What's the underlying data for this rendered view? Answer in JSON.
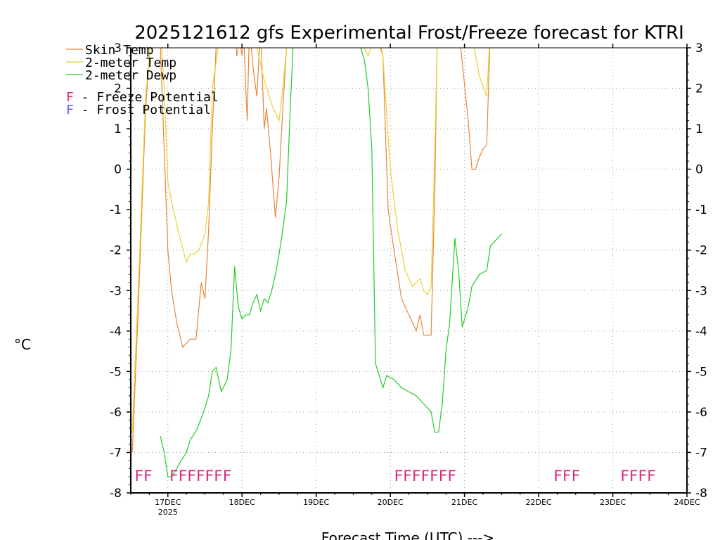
{
  "chart_data": {
    "type": "line",
    "title": "2025121612 gfs Experimental Frost/Freeze forecast for KTRI",
    "xlabel": "Forecast Time (UTC) --->",
    "ylabel": "°C",
    "ylim": [
      -8,
      3
    ],
    "xlim": [
      16.5,
      24
    ],
    "yticks": [
      "-8",
      "-7",
      "-6",
      "-5",
      "-4",
      "-3",
      "-2",
      "-1",
      "0",
      "1",
      "2",
      "3"
    ],
    "xticks": [
      {
        "x": 17,
        "label": "17DEC",
        "sublabel": "2025"
      },
      {
        "x": 18,
        "label": "18DEC"
      },
      {
        "x": 19,
        "label": "19DEC"
      },
      {
        "x": 20,
        "label": "20DEC"
      },
      {
        "x": 21,
        "label": "21DEC"
      },
      {
        "x": 22,
        "label": "22DEC"
      },
      {
        "x": 23,
        "label": "23DEC"
      },
      {
        "x": 24,
        "label": "24DEC"
      }
    ],
    "grid": true,
    "legend": {
      "position": "top-left",
      "series": [
        {
          "name": "Skin Temp",
          "color": "#e8863a"
        },
        {
          "name": "2-meter Temp",
          "color": "#e8d232"
        },
        {
          "name": "2-meter Dewp",
          "color": "#22cc22"
        }
      ],
      "markers": [
        {
          "letter": "F",
          "text": " - Freeze Potential",
          "color": "#d9287f"
        },
        {
          "letter": "F",
          "text": " - Frost Potential",
          "color": "#5a5af0"
        }
      ]
    },
    "series": [
      {
        "name": "Skin Temp",
        "color": "#e8863a",
        "x": [
          16.52,
          16.6,
          16.7,
          16.78,
          16.85,
          16.88,
          16.92,
          17.0,
          17.05,
          17.12,
          17.2,
          17.3,
          17.38,
          17.45,
          17.5,
          17.55,
          17.6,
          17.65,
          17.7,
          17.72,
          17.75,
          17.8,
          17.85,
          17.9,
          17.93,
          17.97,
          18.0,
          18.02,
          18.05,
          18.07,
          18.1,
          18.15,
          18.2,
          18.25,
          18.3,
          18.33,
          18.38,
          18.45,
          18.5,
          18.55,
          18.6,
          18.65,
          18.7
        ],
        "y": [
          -7.0,
          -3.5,
          1.5,
          3.5,
          4.5,
          4.0,
          2.0,
          -2.0,
          -3.0,
          -3.8,
          -4.4,
          -4.2,
          -4.2,
          -2.8,
          -3.2,
          -1.5,
          1.0,
          3.0,
          3.5,
          3.5,
          4.0,
          4.2,
          4.0,
          3.5,
          2.8,
          3.2,
          2.8,
          3.5,
          2.0,
          1.2,
          3.5,
          2.5,
          1.8,
          3.5,
          1.0,
          1.5,
          0.5,
          -1.2,
          -0.2,
          1.5,
          3.0,
          3.5,
          4.0
        ],
        "x2": [
          19.5,
          19.65,
          19.8,
          19.9,
          19.97,
          20.05,
          20.15,
          20.25,
          20.35,
          20.4,
          20.45,
          20.5,
          20.55,
          20.6,
          20.63,
          20.65,
          20.7,
          20.75,
          20.8,
          20.85,
          20.9,
          20.95,
          21.0,
          21.05,
          21.1,
          21.15,
          21.2,
          21.25,
          21.3,
          21.35
        ],
        "y2": [
          3.5,
          3.5,
          3.5,
          2.8,
          -1.0,
          -2.0,
          -3.2,
          -3.6,
          -4.0,
          -3.6,
          -4.1,
          -4.1,
          -4.1,
          -0.5,
          3.0,
          3.5,
          3.8,
          4.0,
          3.8,
          3.6,
          3.4,
          3.0,
          2.1,
          1.2,
          0.0,
          0.0,
          0.3,
          0.5,
          0.6,
          3.5
        ]
      },
      {
        "name": "2-meter Temp",
        "color": "#e8d232",
        "x": [
          16.52,
          16.6,
          16.7,
          16.78,
          16.85,
          16.9,
          16.95,
          17.0,
          17.05,
          17.15,
          17.25,
          17.3,
          17.35,
          17.42,
          17.5,
          17.55,
          17.6,
          17.7,
          17.8,
          17.9,
          18.0,
          18.1,
          18.2,
          18.3,
          18.4,
          18.5,
          18.55,
          18.6,
          18.7
        ],
        "y": [
          -6.5,
          -3.0,
          1.8,
          3.3,
          4.3,
          3.5,
          2.0,
          -0.3,
          -0.8,
          -1.6,
          -2.3,
          -2.1,
          -2.1,
          -2.0,
          -1.6,
          -0.8,
          2.0,
          3.3,
          3.8,
          4.0,
          3.8,
          3.5,
          3.0,
          2.2,
          1.6,
          1.2,
          2.0,
          3.0,
          3.5
        ],
        "x2": [
          19.5,
          19.6,
          19.7,
          19.8,
          19.9,
          20.0,
          20.1,
          20.2,
          20.3,
          20.4,
          20.45,
          20.5,
          20.55,
          20.6,
          20.63,
          20.7,
          20.8,
          20.9,
          21.0,
          21.1,
          21.2,
          21.3,
          21.35
        ],
        "x2_note": "",
        "y2": [
          3.5,
          3.2,
          2.8,
          3.3,
          2.8,
          0.0,
          -1.5,
          -2.5,
          -2.9,
          -2.7,
          -3.0,
          -3.1,
          -2.9,
          0.5,
          3.0,
          3.6,
          4.0,
          4.0,
          3.6,
          3.3,
          2.3,
          1.8,
          3.5
        ]
      },
      {
        "name": "2-meter Dewp",
        "color": "#22cc22",
        "x": [
          16.9,
          16.95,
          17.0,
          17.05,
          17.12,
          17.18,
          17.25,
          17.3,
          17.4,
          17.5,
          17.55,
          17.6,
          17.65,
          17.72,
          17.8,
          17.85,
          17.9,
          17.95,
          18.0,
          18.05,
          18.1,
          18.15,
          18.2,
          18.25,
          18.3,
          18.35,
          18.4,
          18.45,
          18.5,
          18.55,
          18.6,
          18.65,
          18.7
        ],
        "y": [
          -6.6,
          -7.0,
          -7.6,
          -7.6,
          -7.4,
          -7.2,
          -7.0,
          -6.7,
          -6.4,
          -5.9,
          -5.6,
          -5.0,
          -4.9,
          -5.5,
          -5.2,
          -4.5,
          -2.4,
          -3.4,
          -3.7,
          -3.6,
          -3.6,
          -3.3,
          -3.1,
          -3.5,
          -3.2,
          -3.3,
          -3.0,
          -2.6,
          -2.1,
          -1.5,
          -0.8,
          1.5,
          3.5
        ],
        "x2": [
          19.5,
          19.6,
          19.65,
          19.7,
          19.75,
          19.8,
          19.9,
          19.95,
          20.05,
          20.15,
          20.25,
          20.35,
          20.45,
          20.55,
          20.6,
          20.65,
          20.7,
          20.75,
          20.8,
          20.87,
          20.92,
          20.97,
          21.05,
          21.1,
          21.2,
          21.3,
          21.35,
          21.4,
          21.5
        ],
        "y2": [
          3.5,
          3.0,
          2.7,
          2.0,
          0.5,
          -4.8,
          -5.4,
          -5.1,
          -5.2,
          -5.4,
          -5.5,
          -5.6,
          -5.8,
          -6.0,
          -6.5,
          -6.5,
          -5.8,
          -4.5,
          -3.8,
          -1.7,
          -2.5,
          -3.9,
          -3.4,
          -2.9,
          -2.6,
          -2.5,
          -1.9,
          -1.8,
          -1.6
        ]
      }
    ],
    "markers": [
      {
        "x": 16.55,
        "text": "FF",
        "color": "#d9287f"
      },
      {
        "x": 17.02,
        "text": "FFFFFFF",
        "color": "#d9287f"
      },
      {
        "x": 20.05,
        "text": "FFFFFFF",
        "color": "#d9287f"
      },
      {
        "x": 22.2,
        "text": "FFF",
        "color": "#d9287f"
      },
      {
        "x": 23.1,
        "text": "FFFF",
        "color": "#d9287f"
      }
    ],
    "marker_y": -7.55
  }
}
